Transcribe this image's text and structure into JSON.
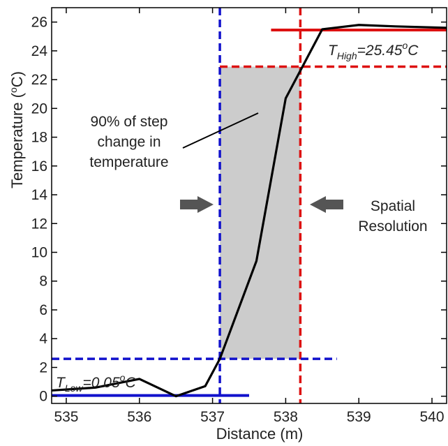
{
  "chart_data": {
    "type": "line",
    "xlabel": "Distance (m)",
    "ylabel_main": "Temperature (",
    "ylabel_sup": "o",
    "ylabel_tail": "C)",
    "xlim": [
      534.8,
      540.2
    ],
    "ylim": [
      -0.5,
      27
    ],
    "x_ticks": [
      535,
      536,
      537,
      538,
      539,
      540
    ],
    "y_ticks": [
      0,
      2,
      4,
      6,
      8,
      10,
      12,
      14,
      16,
      18,
      20,
      22,
      24,
      26
    ],
    "grid": false,
    "series": [
      {
        "color": "#000000",
        "x": [
          534.8,
          535.4,
          536.0,
          536.5,
          536.9,
          537.1,
          537.6,
          538.0,
          538.5,
          539.0,
          539.5,
          540.2
        ],
        "y": [
          0.4,
          0.6,
          1.2,
          0.0,
          0.7,
          2.6,
          9.4,
          20.7,
          25.5,
          25.8,
          25.7,
          25.6
        ]
      }
    ],
    "reference_lines": [
      {
        "orientation": "vertical",
        "x": 537.1,
        "color": "#1111cc",
        "style": "dashed"
      },
      {
        "orientation": "vertical",
        "x": 538.2,
        "color": "#dd1111",
        "style": "dashed"
      },
      {
        "orientation": "horizontal",
        "y": 2.6,
        "x_from": 534.8,
        "x_to": 538.7,
        "color": "#1111cc",
        "style": "dashed"
      },
      {
        "orientation": "horizontal",
        "y": 22.9,
        "x_from": 537.1,
        "x_to": 540.2,
        "color": "#dd1111",
        "style": "dashed"
      },
      {
        "orientation": "horizontal",
        "y": 0.05,
        "x_from": 534.8,
        "x_to": 537.5,
        "color": "#1111cc",
        "style": "solid"
      },
      {
        "orientation": "horizontal",
        "y": 25.45,
        "x_from": 537.8,
        "x_to": 540.2,
        "color": "#dd1111",
        "style": "solid"
      }
    ],
    "shaded_region": {
      "x0": 537.1,
      "x1": 538.2,
      "y0": 2.6,
      "y1": 22.9,
      "color": "#cccccc"
    },
    "annotations": {
      "t_low": {
        "symbol": "T",
        "subscript": "Low",
        "value": "=0.05",
        "sup": "o",
        "unit": "C"
      },
      "t_high": {
        "symbol": "T",
        "subscript": "High",
        "value": "=25.45",
        "sup": "o",
        "unit": "C"
      },
      "step_change": [
        "90% of step",
        "change in",
        "temperature"
      ],
      "spatial_resolution": [
        "Spatial",
        "Resolution"
      ]
    },
    "colors": {
      "line": "#000000",
      "blue": "#1111cc",
      "red": "#dd1111",
      "arrow": "#555555",
      "shade": "#cccccc"
    }
  }
}
